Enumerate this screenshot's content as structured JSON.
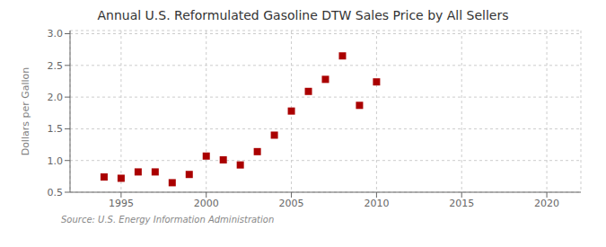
{
  "chart_data": {
    "type": "scatter",
    "title": "Annual U.S. Reformulated Gasoline DTW Sales Price by All Sellers",
    "ylabel": "Dollars per Gallon",
    "annotations": [
      "Source: U.S. Energy Information Administration"
    ],
    "x": [
      1994,
      1995,
      1996,
      1997,
      1998,
      1999,
      2000,
      2001,
      2002,
      2003,
      2004,
      2005,
      2006,
      2007,
      2008,
      2009,
      2010
    ],
    "values": [
      0.74,
      0.72,
      0.82,
      0.82,
      0.65,
      0.78,
      1.07,
      1.01,
      0.93,
      1.14,
      1.4,
      1.78,
      2.09,
      2.28,
      2.65,
      1.87,
      2.24
    ],
    "color": "#aa0000",
    "marker": "square",
    "xlim": [
      1992,
      2022
    ],
    "ylim": [
      0.5,
      3.05
    ],
    "xticks": [
      1995,
      2000,
      2005,
      2010,
      2015,
      2020
    ],
    "yticks": [
      0.5,
      {
        "value": 1.0,
        "label": "1.0"
      },
      1.5,
      {
        "value": 2.0,
        "label": "2.0"
      },
      2.5,
      {
        "value": 3.0,
        "label": "3.0"
      }
    ],
    "grid": true
  }
}
